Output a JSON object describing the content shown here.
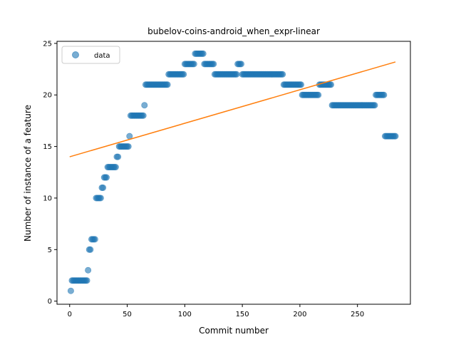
{
  "chart_data": {
    "type": "scatter",
    "title": "bubelov-coins-android_when_expr-linear",
    "xlabel": "Commit number",
    "ylabel": "Number of instance of a feature",
    "xlim": [
      -11,
      296
    ],
    "ylim": [
      -0.3,
      25.2
    ],
    "xticks": [
      0,
      50,
      100,
      150,
      200,
      250
    ],
    "yticks": [
      0,
      5,
      10,
      15,
      20,
      25
    ],
    "grid": false,
    "legend": {
      "position": "top-left",
      "entries": [
        "data"
      ]
    },
    "colors": {
      "data": "#1f77b4",
      "fit": "#ff7f0e"
    },
    "series": [
      {
        "name": "data",
        "points": [
          [
            1,
            1
          ],
          [
            2,
            2
          ],
          [
            3,
            2
          ],
          [
            4,
            2
          ],
          [
            5,
            2
          ],
          [
            6,
            2
          ],
          [
            7,
            2
          ],
          [
            8,
            2
          ],
          [
            9,
            2
          ],
          [
            10,
            2
          ],
          [
            11,
            2
          ],
          [
            12,
            2
          ],
          [
            13,
            2
          ],
          [
            14,
            2
          ],
          [
            15,
            2
          ],
          [
            16,
            3
          ],
          [
            17,
            5
          ],
          [
            18,
            5
          ],
          [
            19,
            6
          ],
          [
            20,
            6
          ],
          [
            21,
            6
          ],
          [
            22,
            6
          ],
          [
            23,
            10
          ],
          [
            24,
            10
          ],
          [
            25,
            10
          ],
          [
            26,
            10
          ],
          [
            27,
            10
          ],
          [
            28,
            11
          ],
          [
            29,
            11
          ],
          [
            30,
            12
          ],
          [
            31,
            12
          ],
          [
            32,
            12
          ],
          [
            33,
            13
          ],
          [
            34,
            13
          ],
          [
            35,
            13
          ],
          [
            36,
            13
          ],
          [
            37,
            13
          ],
          [
            38,
            13
          ],
          [
            39,
            13
          ],
          [
            40,
            13
          ],
          [
            41,
            14
          ],
          [
            42,
            14
          ],
          [
            43,
            15
          ],
          [
            44,
            15
          ],
          [
            45,
            15
          ],
          [
            46,
            15
          ],
          [
            47,
            15
          ],
          [
            48,
            15
          ],
          [
            49,
            15
          ],
          [
            50,
            15
          ],
          [
            51,
            15
          ],
          [
            52,
            16
          ],
          [
            53,
            18
          ],
          [
            54,
            18
          ],
          [
            55,
            18
          ],
          [
            56,
            18
          ],
          [
            57,
            18
          ],
          [
            58,
            18
          ],
          [
            59,
            18
          ],
          [
            60,
            18
          ],
          [
            61,
            18
          ],
          [
            62,
            18
          ],
          [
            63,
            18
          ],
          [
            64,
            18
          ],
          [
            65,
            19
          ],
          [
            66,
            21
          ],
          [
            67,
            21
          ],
          [
            68,
            21
          ],
          [
            69,
            21
          ],
          [
            70,
            21
          ],
          [
            71,
            21
          ],
          [
            72,
            21
          ],
          [
            73,
            21
          ],
          [
            74,
            21
          ],
          [
            75,
            21
          ],
          [
            76,
            21
          ],
          [
            77,
            21
          ],
          [
            78,
            21
          ],
          [
            79,
            21
          ],
          [
            80,
            21
          ],
          [
            81,
            21
          ],
          [
            82,
            21
          ],
          [
            83,
            21
          ],
          [
            84,
            21
          ],
          [
            85,
            21
          ],
          [
            86,
            22
          ],
          [
            87,
            22
          ],
          [
            88,
            22
          ],
          [
            89,
            22
          ],
          [
            90,
            22
          ],
          [
            91,
            22
          ],
          [
            92,
            22
          ],
          [
            93,
            22
          ],
          [
            94,
            22
          ],
          [
            95,
            22
          ],
          [
            96,
            22
          ],
          [
            97,
            22
          ],
          [
            98,
            22
          ],
          [
            99,
            22
          ],
          [
            100,
            23
          ],
          [
            101,
            23
          ],
          [
            102,
            23
          ],
          [
            103,
            23
          ],
          [
            104,
            23
          ],
          [
            105,
            23
          ],
          [
            106,
            23
          ],
          [
            107,
            23
          ],
          [
            108,
            23
          ],
          [
            109,
            24
          ],
          [
            110,
            24
          ],
          [
            111,
            24
          ],
          [
            112,
            24
          ],
          [
            113,
            24
          ],
          [
            114,
            24
          ],
          [
            115,
            24
          ],
          [
            116,
            24
          ],
          [
            117,
            23
          ],
          [
            118,
            23
          ],
          [
            119,
            23
          ],
          [
            120,
            23
          ],
          [
            121,
            23
          ],
          [
            122,
            23
          ],
          [
            123,
            23
          ],
          [
            124,
            23
          ],
          [
            125,
            23
          ],
          [
            126,
            22
          ],
          [
            127,
            22
          ],
          [
            128,
            22
          ],
          [
            129,
            22
          ],
          [
            130,
            22
          ],
          [
            131,
            22
          ],
          [
            132,
            22
          ],
          [
            133,
            22
          ],
          [
            134,
            22
          ],
          [
            135,
            22
          ],
          [
            136,
            22
          ],
          [
            137,
            22
          ],
          [
            138,
            22
          ],
          [
            139,
            22
          ],
          [
            140,
            22
          ],
          [
            141,
            22
          ],
          [
            142,
            22
          ],
          [
            143,
            22
          ],
          [
            144,
            22
          ],
          [
            145,
            22
          ],
          [
            146,
            23
          ],
          [
            147,
            23
          ],
          [
            148,
            23
          ],
          [
            149,
            23
          ],
          [
            150,
            22
          ],
          [
            151,
            22
          ],
          [
            152,
            22
          ],
          [
            153,
            22
          ],
          [
            154,
            22
          ],
          [
            155,
            22
          ],
          [
            156,
            22
          ],
          [
            157,
            22
          ],
          [
            158,
            22
          ],
          [
            159,
            22
          ],
          [
            160,
            22
          ],
          [
            161,
            22
          ],
          [
            162,
            22
          ],
          [
            163,
            22
          ],
          [
            164,
            22
          ],
          [
            165,
            22
          ],
          [
            166,
            22
          ],
          [
            167,
            22
          ],
          [
            168,
            22
          ],
          [
            169,
            22
          ],
          [
            170,
            22
          ],
          [
            171,
            22
          ],
          [
            172,
            22
          ],
          [
            173,
            22
          ],
          [
            174,
            22
          ],
          [
            175,
            22
          ],
          [
            176,
            22
          ],
          [
            177,
            22
          ],
          [
            178,
            22
          ],
          [
            179,
            22
          ],
          [
            180,
            22
          ],
          [
            181,
            22
          ],
          [
            182,
            22
          ],
          [
            183,
            22
          ],
          [
            184,
            22
          ],
          [
            185,
            22
          ],
          [
            186,
            21
          ],
          [
            187,
            21
          ],
          [
            188,
            21
          ],
          [
            189,
            21
          ],
          [
            190,
            21
          ],
          [
            191,
            21
          ],
          [
            192,
            21
          ],
          [
            193,
            21
          ],
          [
            194,
            21
          ],
          [
            195,
            21
          ],
          [
            196,
            21
          ],
          [
            197,
            21
          ],
          [
            198,
            21
          ],
          [
            199,
            21
          ],
          [
            200,
            21
          ],
          [
            201,
            21
          ],
          [
            202,
            20
          ],
          [
            203,
            20
          ],
          [
            204,
            20
          ],
          [
            205,
            20
          ],
          [
            206,
            20
          ],
          [
            207,
            20
          ],
          [
            208,
            20
          ],
          [
            209,
            20
          ],
          [
            210,
            20
          ],
          [
            211,
            20
          ],
          [
            212,
            20
          ],
          [
            213,
            20
          ],
          [
            214,
            20
          ],
          [
            215,
            20
          ],
          [
            216,
            20
          ],
          [
            217,
            21
          ],
          [
            218,
            21
          ],
          [
            219,
            21
          ],
          [
            220,
            21
          ],
          [
            221,
            21
          ],
          [
            222,
            21
          ],
          [
            223,
            21
          ],
          [
            224,
            21
          ],
          [
            225,
            21
          ],
          [
            226,
            21
          ],
          [
            227,
            21
          ],
          [
            228,
            19
          ],
          [
            229,
            19
          ],
          [
            230,
            19
          ],
          [
            231,
            19
          ],
          [
            232,
            19
          ],
          [
            233,
            19
          ],
          [
            234,
            19
          ],
          [
            235,
            19
          ],
          [
            236,
            19
          ],
          [
            237,
            19
          ],
          [
            238,
            19
          ],
          [
            239,
            19
          ],
          [
            240,
            19
          ],
          [
            241,
            19
          ],
          [
            242,
            19
          ],
          [
            243,
            19
          ],
          [
            244,
            19
          ],
          [
            245,
            19
          ],
          [
            246,
            19
          ],
          [
            247,
            19
          ],
          [
            248,
            19
          ],
          [
            249,
            19
          ],
          [
            250,
            19
          ],
          [
            251,
            19
          ],
          [
            252,
            19
          ],
          [
            253,
            19
          ],
          [
            254,
            19
          ],
          [
            255,
            19
          ],
          [
            256,
            19
          ],
          [
            257,
            19
          ],
          [
            258,
            19
          ],
          [
            259,
            19
          ],
          [
            260,
            19
          ],
          [
            261,
            19
          ],
          [
            262,
            19
          ],
          [
            263,
            19
          ],
          [
            264,
            19
          ],
          [
            265,
            19
          ],
          [
            266,
            20
          ],
          [
            267,
            20
          ],
          [
            268,
            20
          ],
          [
            269,
            20
          ],
          [
            270,
            20
          ],
          [
            271,
            20
          ],
          [
            272,
            20
          ],
          [
            273,
            20
          ],
          [
            274,
            16
          ],
          [
            275,
            16
          ],
          [
            276,
            16
          ],
          [
            277,
            16
          ],
          [
            278,
            16
          ],
          [
            279,
            16
          ],
          [
            280,
            16
          ],
          [
            281,
            16
          ],
          [
            282,
            16
          ],
          [
            283,
            16
          ]
        ]
      },
      {
        "type": "line",
        "points": [
          [
            0,
            14.0
          ],
          [
            283,
            23.2
          ]
        ]
      }
    ]
  }
}
